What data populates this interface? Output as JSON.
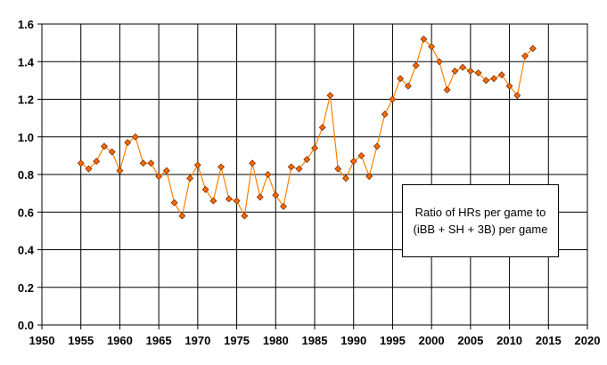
{
  "chart_data": {
    "type": "line",
    "title": "",
    "xlabel": "",
    "ylabel": "",
    "xlim": [
      1950,
      2020
    ],
    "ylim": [
      0,
      1.6
    ],
    "x_ticks": [
      "1950",
      "1955",
      "1960",
      "1965",
      "1970",
      "1975",
      "1980",
      "1985",
      "1990",
      "1995",
      "2000",
      "2005",
      "2010",
      "2015",
      "2020"
    ],
    "y_ticks": [
      "0.0",
      "0.2",
      "0.4",
      "0.6",
      "0.8",
      "1.0",
      "1.2",
      "1.4",
      "1.6"
    ],
    "grid": true,
    "annotation": {
      "line1": "Ratio of HRs per game to",
      "line2": "(iBB + SH + 3B) per game"
    },
    "line_color": "#FF8000",
    "marker_color": "#FF6A00",
    "marker_edge": "#7A2E00",
    "series": [
      {
        "x": [
          1955,
          1956,
          1957,
          1958,
          1959,
          1960,
          1961,
          1962,
          1963,
          1964,
          1965,
          1966,
          1967,
          1968,
          1969,
          1970,
          1971,
          1972,
          1973,
          1974,
          1975,
          1976,
          1977,
          1978,
          1979,
          1980,
          1981,
          1982,
          1983,
          1984,
          1985,
          1986,
          1987,
          1988,
          1989,
          1990,
          1991,
          1992,
          1993,
          1994,
          1995,
          1996,
          1997,
          1998,
          1999,
          2000,
          2001,
          2002,
          2003,
          2004,
          2005,
          2006,
          2007,
          2008,
          2009,
          2010,
          2011,
          2012,
          2013
        ],
        "values": [
          0.86,
          0.83,
          0.87,
          0.95,
          0.92,
          0.82,
          0.97,
          1.0,
          0.86,
          0.86,
          0.79,
          0.82,
          0.65,
          0.58,
          0.78,
          0.85,
          0.72,
          0.66,
          0.84,
          0.67,
          0.66,
          0.58,
          0.86,
          0.68,
          0.8,
          0.69,
          0.63,
          0.84,
          0.83,
          0.88,
          0.94,
          1.05,
          1.22,
          0.83,
          0.78,
          0.87,
          0.9,
          0.79,
          0.95,
          1.12,
          1.2,
          1.31,
          1.27,
          1.38,
          1.52,
          1.48,
          1.4,
          1.25,
          1.35,
          1.37,
          1.35,
          1.34,
          1.3,
          1.31,
          1.33,
          1.27,
          1.22,
          1.43,
          1.47
        ]
      }
    ]
  }
}
